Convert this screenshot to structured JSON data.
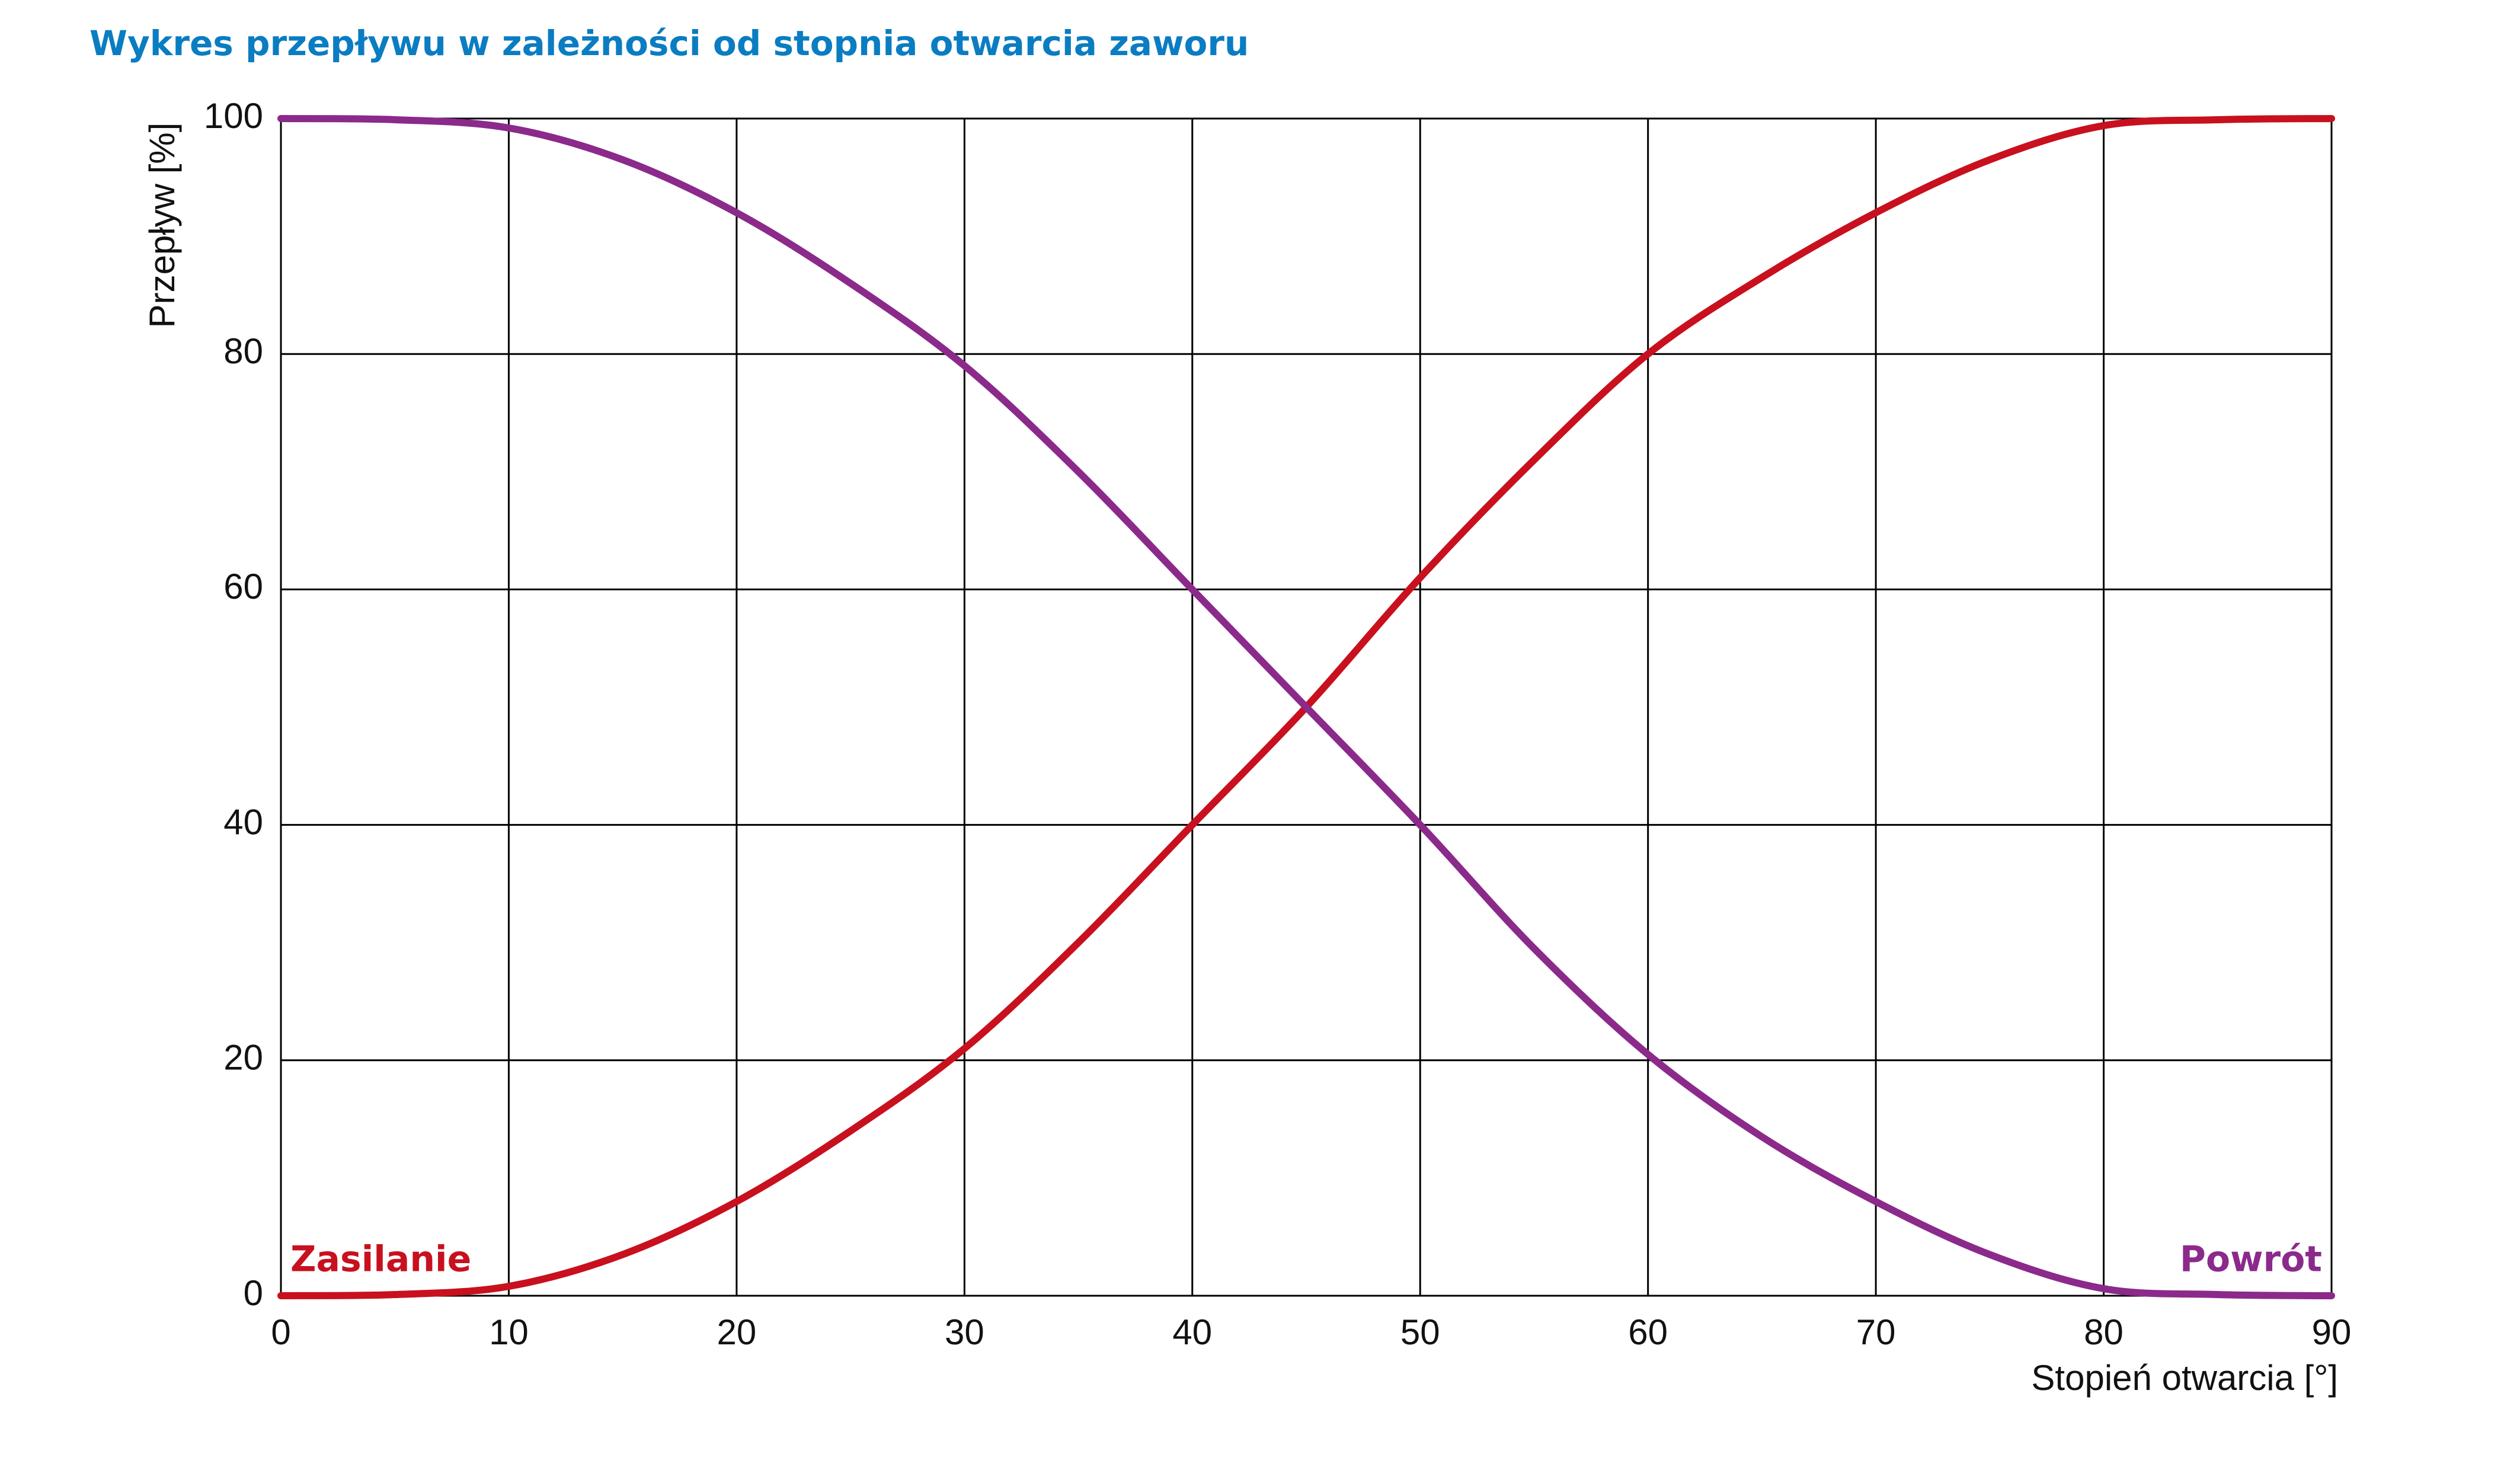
{
  "chart_data": {
    "type": "line",
    "title": "Wykres przepływu w zależności od stopnia otwarcia zaworu",
    "x_label": "Stopień otwarcia [°]",
    "y_label": "Przepływ [%]",
    "x": [
      0,
      5,
      10,
      15,
      20,
      25,
      30,
      35,
      40,
      45,
      50,
      55,
      60,
      65,
      70,
      75,
      80,
      85,
      90
    ],
    "series": [
      {
        "name": "Zasilanie",
        "color": "#c8101e",
        "values": [
          0,
          0.1,
          0.8,
          3.5,
          8,
          14,
          21,
          30,
          40,
          50,
          61,
          71,
          80,
          86.5,
          92,
          96.5,
          99.4,
          99.9,
          100
        ]
      },
      {
        "name": "Powrót",
        "color": "#8b2a8b",
        "values": [
          100,
          99.9,
          99.2,
          96.5,
          92,
          86,
          79,
          70,
          60,
          50,
          40,
          29.5,
          20.5,
          13.5,
          8,
          3.5,
          0.6,
          0.1,
          0
        ]
      }
    ],
    "xlim": [
      0,
      90
    ],
    "xticks": [
      0,
      10,
      20,
      30,
      40,
      50,
      60,
      70,
      80,
      90
    ],
    "ylim": [
      0,
      100
    ],
    "yticks": [
      0,
      20,
      40,
      60,
      80,
      100
    ],
    "grid": true
  }
}
